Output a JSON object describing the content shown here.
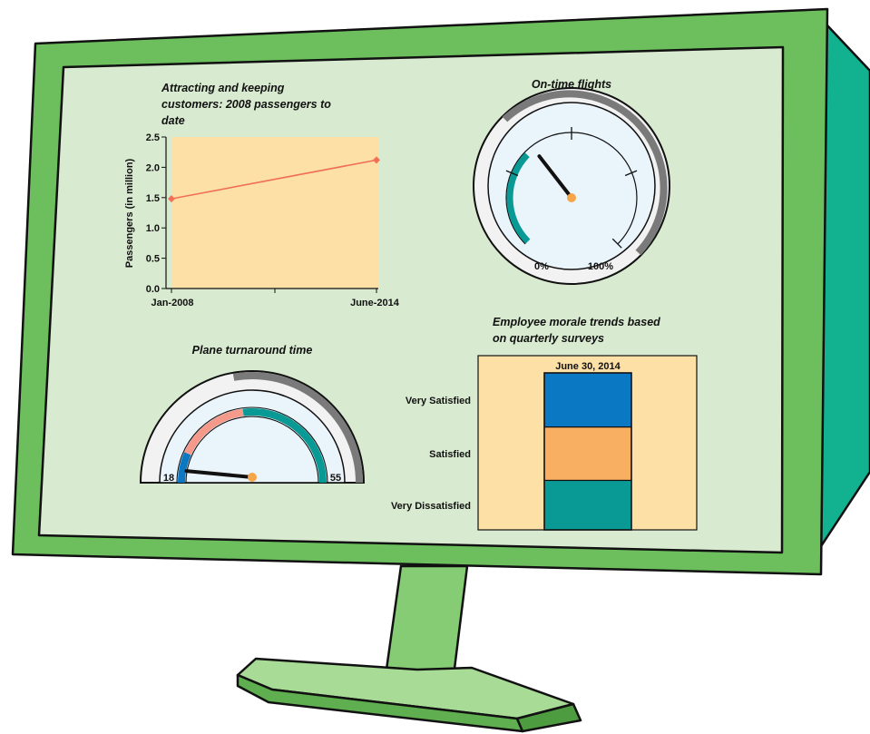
{
  "colors": {
    "frame": "#6dbf5e",
    "frame_side": "#12b291",
    "screen": "#d8ead0",
    "stand": "#86cc74",
    "plot_bg": "#fde0a5",
    "line": "#f06f55",
    "gauge_face": "#eaf4fb",
    "gauge_rim": "#7a7a7a",
    "teal": "#0a9a96",
    "blue": "#0a78c2",
    "salmon": "#f5998a",
    "orange": "#f9af62",
    "needle": "#111111",
    "hub": "#f7a54a"
  },
  "line_chart": {
    "title_lines": [
      "Attracting and keeping",
      "customers: 2008 passengers to",
      "date"
    ],
    "ylabel": "Passengers (in million)",
    "y_ticks": [
      "0.0",
      "0.5",
      "1.0",
      "1.5",
      "2.0",
      "2.5"
    ],
    "x_ticks": [
      "Jan-2008",
      "June-2014"
    ]
  },
  "gauge_ontime": {
    "title": "On-time flights",
    "min_label": "0%",
    "max_label": "100%"
  },
  "gauge_turnaround": {
    "title": "Plane turnaround time",
    "min_label": "18",
    "max_label": "55"
  },
  "morale_chart": {
    "title_lines": [
      "Employee morale trends based",
      "on quarterly surveys"
    ],
    "column_label": "June 30, 2014",
    "categories": [
      "Very Satisfied",
      "Satisfied",
      "Very Dissatisfied"
    ]
  },
  "chart_data": [
    {
      "type": "line",
      "title": "Attracting and keeping customers: 2008 passengers to date",
      "xlabel": "",
      "ylabel": "Passengers (in million)",
      "categories": [
        "Jan-2008",
        "June-2014"
      ],
      "values": [
        1.48,
        2.12
      ],
      "ylim": [
        0,
        2.5
      ],
      "grid": false
    },
    {
      "type": "gauge",
      "title": "On-time flights",
      "range": [
        0,
        100
      ],
      "unit": "%",
      "value_fraction": 0.36,
      "filled_fraction": 0.33
    },
    {
      "type": "gauge",
      "title": "Plane turnaround time",
      "range": [
        18,
        55
      ],
      "value": 21,
      "bands": [
        {
          "from": 18,
          "to": 23,
          "color": "#0a78c2"
        },
        {
          "from": 23,
          "to": 35,
          "color": "#f5998a"
        },
        {
          "from": 35,
          "to": 55,
          "color": "#0a9a96"
        }
      ]
    },
    {
      "type": "bar",
      "stacked": true,
      "title": "Employee morale trends based on quarterly surveys",
      "categories": [
        "June 30, 2014"
      ],
      "series": [
        {
          "name": "Very Satisfied",
          "values": [
            0.345
          ]
        },
        {
          "name": "Satisfied",
          "values": [
            0.34
          ]
        },
        {
          "name": "Very Dissatisfied",
          "values": [
            0.315
          ]
        }
      ]
    }
  ]
}
